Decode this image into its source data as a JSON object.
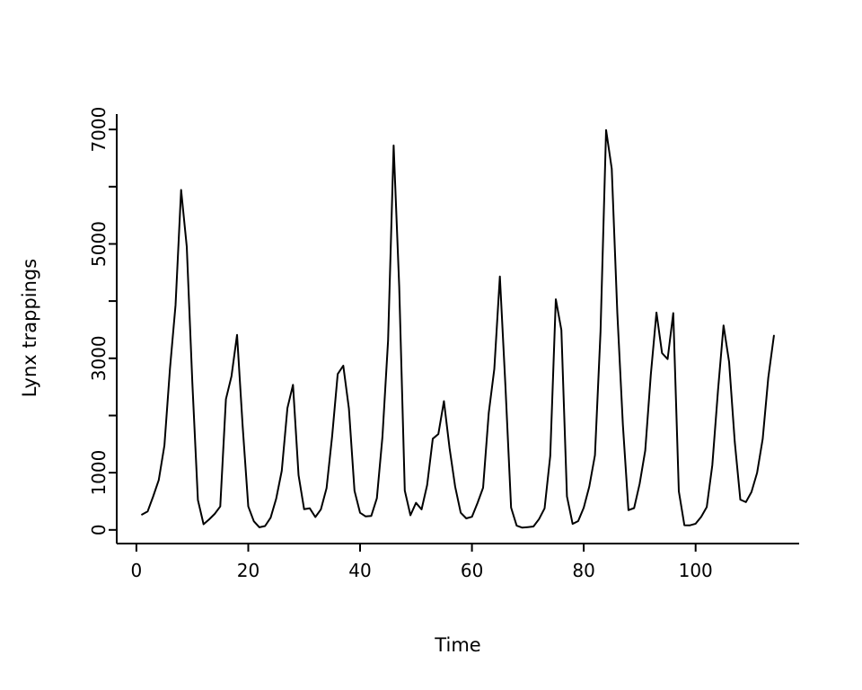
{
  "chart_data": {
    "type": "line",
    "title": "",
    "xlabel": "Time",
    "ylabel": "Lynx trappings",
    "x_start": 1,
    "values": [
      269,
      321,
      585,
      871,
      1475,
      2821,
      3928,
      5943,
      4950,
      2577,
      523,
      98,
      184,
      279,
      409,
      2285,
      2685,
      3409,
      1824,
      409,
      151,
      45,
      68,
      213,
      546,
      1033,
      2129,
      2536,
      957,
      361,
      377,
      225,
      360,
      731,
      1638,
      2725,
      2871,
      2119,
      684,
      299,
      236,
      245,
      552,
      1623,
      3311,
      6721,
      4254,
      687,
      255,
      473,
      358,
      784,
      1594,
      1676,
      2251,
      1426,
      756,
      299,
      201,
      229,
      469,
      736,
      2042,
      2811,
      4431,
      2511,
      389,
      73,
      39,
      49,
      59,
      188,
      377,
      1292,
      4031,
      3495,
      587,
      105,
      153,
      387,
      758,
      1307,
      3465,
      6991,
      6313,
      3794,
      1836,
      345,
      382,
      808,
      1388,
      2713,
      3800,
      3091,
      2985,
      3790,
      674,
      81,
      80,
      108,
      229,
      399,
      1132,
      2432,
      3574,
      2935,
      1537,
      529,
      485,
      662,
      1000,
      1590,
      2657,
      3396
    ],
    "x_ticks": [
      0,
      20,
      40,
      60,
      80,
      100
    ],
    "y_ticks": [
      0,
      1000,
      2000,
      3000,
      4000,
      5000,
      6000,
      7000
    ],
    "y_tick_labels": [
      "0",
      "1000",
      "",
      "3000",
      "",
      "5000",
      "",
      "7000"
    ],
    "xlim": [
      -3.52,
      118.52
    ],
    "ylim": [
      -239,
      7269
    ],
    "line_color": "#000000",
    "axis_color": "#000000",
    "background": "#ffffff",
    "legend": "none",
    "grid": "off"
  }
}
